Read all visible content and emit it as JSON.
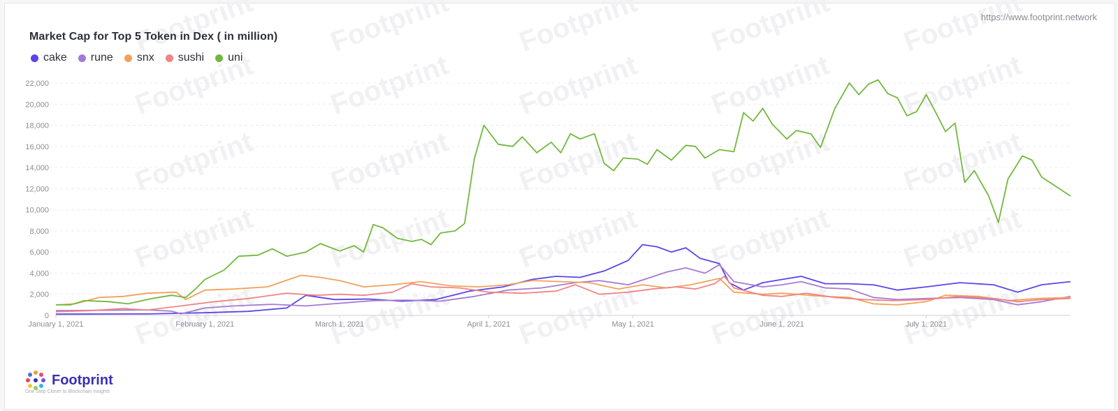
{
  "source_url": "https://www.footprint.network",
  "watermark_text": "Footprint",
  "brand": {
    "name": "Footprint",
    "tagline": "One Step Closer to Blockchain Insights"
  },
  "chart_data": {
    "type": "line",
    "title": "Market Cap for Top 5 Token in Dex ( in million)",
    "ylim": [
      0,
      22000
    ],
    "yticks": [
      "0",
      "2,000",
      "4,000",
      "6,000",
      "8,000",
      "10,000",
      "12,000",
      "14,000",
      "16,000",
      "18,000",
      "20,000",
      "22,000"
    ],
    "x_range": [
      "2021-01-01",
      "2021-07-31"
    ],
    "xtick_labels": [
      "January 1, 2021",
      "February 1, 2021",
      "March 1, 2021",
      "April 1, 2021",
      "May 1, 2021",
      "June 1, 2021",
      "July 1, 2021"
    ],
    "legend_position": "top-left",
    "series": [
      {
        "name": "cake",
        "color": "#5b45e8",
        "points": [
          [
            "2021-01-01",
            120
          ],
          [
            "2021-01-10",
            130
          ],
          [
            "2021-01-20",
            140
          ],
          [
            "2021-02-01",
            250
          ],
          [
            "2021-02-10",
            380
          ],
          [
            "2021-02-18",
            700
          ],
          [
            "2021-02-22",
            1900
          ],
          [
            "2021-02-28",
            1500
          ],
          [
            "2021-03-07",
            1550
          ],
          [
            "2021-03-14",
            1350
          ],
          [
            "2021-03-21",
            1500
          ],
          [
            "2021-03-28",
            2300
          ],
          [
            "2021-04-04",
            2700
          ],
          [
            "2021-04-10",
            3400
          ],
          [
            "2021-04-15",
            3700
          ],
          [
            "2021-04-20",
            3600
          ],
          [
            "2021-04-25",
            4200
          ],
          [
            "2021-04-30",
            5200
          ],
          [
            "2021-05-03",
            6700
          ],
          [
            "2021-05-06",
            6500
          ],
          [
            "2021-05-09",
            6000
          ],
          [
            "2021-05-12",
            6400
          ],
          [
            "2021-05-15",
            5400
          ],
          [
            "2021-05-19",
            4900
          ],
          [
            "2021-05-21",
            3100
          ],
          [
            "2021-05-24",
            2400
          ],
          [
            "2021-05-28",
            3100
          ],
          [
            "2021-06-01",
            3400
          ],
          [
            "2021-06-05",
            3700
          ],
          [
            "2021-06-10",
            3000
          ],
          [
            "2021-06-15",
            3000
          ],
          [
            "2021-06-20",
            2900
          ],
          [
            "2021-06-25",
            2400
          ],
          [
            "2021-07-01",
            2700
          ],
          [
            "2021-07-08",
            3100
          ],
          [
            "2021-07-15",
            2900
          ],
          [
            "2021-07-20",
            2200
          ],
          [
            "2021-07-25",
            2900
          ],
          [
            "2021-07-31",
            3200
          ]
        ]
      },
      {
        "name": "rune",
        "color": "#a57ad3",
        "points": [
          [
            "2021-01-01",
            450
          ],
          [
            "2021-01-10",
            480
          ],
          [
            "2021-01-20",
            520
          ],
          [
            "2021-01-25",
            400
          ],
          [
            "2021-01-27",
            150
          ],
          [
            "2021-02-01",
            700
          ],
          [
            "2021-02-07",
            900
          ],
          [
            "2021-02-15",
            1050
          ],
          [
            "2021-02-22",
            900
          ],
          [
            "2021-03-01",
            1150
          ],
          [
            "2021-03-08",
            1400
          ],
          [
            "2021-03-15",
            1450
          ],
          [
            "2021-03-22",
            1350
          ],
          [
            "2021-03-29",
            1800
          ],
          [
            "2021-04-05",
            2400
          ],
          [
            "2021-04-12",
            2600
          ],
          [
            "2021-04-19",
            3100
          ],
          [
            "2021-04-24",
            3300
          ],
          [
            "2021-04-30",
            2900
          ],
          [
            "2021-05-04",
            3500
          ],
          [
            "2021-05-08",
            4100
          ],
          [
            "2021-05-12",
            4500
          ],
          [
            "2021-05-16",
            4000
          ],
          [
            "2021-05-19",
            4800
          ],
          [
            "2021-05-22",
            3200
          ],
          [
            "2021-05-28",
            2700
          ],
          [
            "2021-06-01",
            2900
          ],
          [
            "2021-06-05",
            3200
          ],
          [
            "2021-06-10",
            2600
          ],
          [
            "2021-06-15",
            2500
          ],
          [
            "2021-06-20",
            1700
          ],
          [
            "2021-06-25",
            1500
          ],
          [
            "2021-07-01",
            1600
          ],
          [
            "2021-07-08",
            1700
          ],
          [
            "2021-07-15",
            1500
          ],
          [
            "2021-07-20",
            1000
          ],
          [
            "2021-07-25",
            1300
          ],
          [
            "2021-07-31",
            1800
          ]
        ]
      },
      {
        "name": "snx",
        "color": "#f2a15a",
        "points": [
          [
            "2021-01-01",
            1000
          ],
          [
            "2021-01-05",
            1100
          ],
          [
            "2021-01-10",
            1700
          ],
          [
            "2021-01-15",
            1800
          ],
          [
            "2021-01-20",
            2100
          ],
          [
            "2021-01-26",
            2200
          ],
          [
            "2021-01-28",
            1500
          ],
          [
            "2021-02-01",
            2400
          ],
          [
            "2021-02-07",
            2500
          ],
          [
            "2021-02-14",
            2700
          ],
          [
            "2021-02-21",
            3800
          ],
          [
            "2021-02-25",
            3600
          ],
          [
            "2021-03-01",
            3300
          ],
          [
            "2021-03-06",
            2700
          ],
          [
            "2021-03-12",
            2900
          ],
          [
            "2021-03-18",
            3200
          ],
          [
            "2021-03-24",
            2800
          ],
          [
            "2021-03-30",
            2700
          ],
          [
            "2021-04-05",
            2900
          ],
          [
            "2021-04-10",
            3300
          ],
          [
            "2021-04-16",
            3200
          ],
          [
            "2021-04-22",
            3100
          ],
          [
            "2021-04-28",
            2500
          ],
          [
            "2021-05-03",
            2900
          ],
          [
            "2021-05-08",
            2600
          ],
          [
            "2021-05-13",
            2900
          ],
          [
            "2021-05-19",
            3500
          ],
          [
            "2021-05-22",
            2200
          ],
          [
            "2021-05-28",
            2000
          ],
          [
            "2021-06-01",
            2100
          ],
          [
            "2021-06-10",
            1800
          ],
          [
            "2021-06-15",
            1700
          ],
          [
            "2021-06-20",
            1100
          ],
          [
            "2021-06-25",
            1000
          ],
          [
            "2021-07-01",
            1300
          ],
          [
            "2021-07-05",
            1900
          ],
          [
            "2021-07-12",
            1800
          ],
          [
            "2021-07-18",
            1400
          ],
          [
            "2021-07-24",
            1600
          ],
          [
            "2021-07-31",
            1700
          ]
        ]
      },
      {
        "name": "sushi",
        "color": "#ef8585",
        "points": [
          [
            "2021-01-01",
            350
          ],
          [
            "2021-01-08",
            450
          ],
          [
            "2021-01-15",
            650
          ],
          [
            "2021-01-20",
            500
          ],
          [
            "2021-01-27",
            900
          ],
          [
            "2021-02-03",
            1300
          ],
          [
            "2021-02-10",
            1600
          ],
          [
            "2021-02-18",
            2100
          ],
          [
            "2021-02-24",
            1900
          ],
          [
            "2021-03-01",
            2000
          ],
          [
            "2021-03-06",
            1900
          ],
          [
            "2021-03-12",
            2200
          ],
          [
            "2021-03-16",
            3000
          ],
          [
            "2021-03-20",
            2700
          ],
          [
            "2021-03-26",
            2600
          ],
          [
            "2021-04-01",
            2200
          ],
          [
            "2021-04-08",
            2100
          ],
          [
            "2021-04-15",
            2300
          ],
          [
            "2021-04-19",
            2900
          ],
          [
            "2021-04-24",
            2000
          ],
          [
            "2021-04-30",
            2200
          ],
          [
            "2021-05-05",
            2500
          ],
          [
            "2021-05-10",
            2700
          ],
          [
            "2021-05-14",
            2500
          ],
          [
            "2021-05-18",
            3000
          ],
          [
            "2021-05-20",
            3700
          ],
          [
            "2021-05-22",
            2600
          ],
          [
            "2021-05-28",
            1900
          ],
          [
            "2021-06-01",
            1800
          ],
          [
            "2021-06-06",
            2100
          ],
          [
            "2021-06-12",
            1700
          ],
          [
            "2021-06-18",
            1500
          ],
          [
            "2021-06-24",
            1400
          ],
          [
            "2021-07-01",
            1500
          ],
          [
            "2021-07-08",
            1800
          ],
          [
            "2021-07-15",
            1600
          ],
          [
            "2021-07-20",
            1300
          ],
          [
            "2021-07-25",
            1500
          ],
          [
            "2021-07-31",
            1600
          ]
        ]
      },
      {
        "name": "uni",
        "color": "#72b83e",
        "points": [
          [
            "2021-01-01",
            1000
          ],
          [
            "2021-01-04",
            1000
          ],
          [
            "2021-01-07",
            1400
          ],
          [
            "2021-01-12",
            1300
          ],
          [
            "2021-01-16",
            1100
          ],
          [
            "2021-01-21",
            1600
          ],
          [
            "2021-01-25",
            1900
          ],
          [
            "2021-01-28",
            1700
          ],
          [
            "2021-01-30",
            2500
          ],
          [
            "2021-02-01",
            3400
          ],
          [
            "2021-02-05",
            4300
          ],
          [
            "2021-02-08",
            5600
          ],
          [
            "2021-02-12",
            5700
          ],
          [
            "2021-02-15",
            6300
          ],
          [
            "2021-02-18",
            5600
          ],
          [
            "2021-02-22",
            6000
          ],
          [
            "2021-02-25",
            6800
          ],
          [
            "2021-03-01",
            6100
          ],
          [
            "2021-03-04",
            6600
          ],
          [
            "2021-03-06",
            6000
          ],
          [
            "2021-03-08",
            8600
          ],
          [
            "2021-03-10",
            8300
          ],
          [
            "2021-03-13",
            7300
          ],
          [
            "2021-03-16",
            7000
          ],
          [
            "2021-03-18",
            7200
          ],
          [
            "2021-03-20",
            6700
          ],
          [
            "2021-03-22",
            7800
          ],
          [
            "2021-03-25",
            8000
          ],
          [
            "2021-03-27",
            8700
          ],
          [
            "2021-03-29",
            14800
          ],
          [
            "2021-03-31",
            18000
          ],
          [
            "2021-04-03",
            16200
          ],
          [
            "2021-04-06",
            16000
          ],
          [
            "2021-04-08",
            16900
          ],
          [
            "2021-04-11",
            15400
          ],
          [
            "2021-04-14",
            16400
          ],
          [
            "2021-04-16",
            15400
          ],
          [
            "2021-04-18",
            17200
          ],
          [
            "2021-04-20",
            16700
          ],
          [
            "2021-04-23",
            17200
          ],
          [
            "2021-04-25",
            14400
          ],
          [
            "2021-04-27",
            13700
          ],
          [
            "2021-04-29",
            14900
          ],
          [
            "2021-05-02",
            14800
          ],
          [
            "2021-05-04",
            14300
          ],
          [
            "2021-05-06",
            15700
          ],
          [
            "2021-05-09",
            14700
          ],
          [
            "2021-05-12",
            16100
          ],
          [
            "2021-05-14",
            16000
          ],
          [
            "2021-05-16",
            14900
          ],
          [
            "2021-05-19",
            15700
          ],
          [
            "2021-05-22",
            15500
          ],
          [
            "2021-05-24",
            19200
          ],
          [
            "2021-05-26",
            18400
          ],
          [
            "2021-05-28",
            19600
          ],
          [
            "2021-05-30",
            18100
          ],
          [
            "2021-06-02",
            16700
          ],
          [
            "2021-06-04",
            17500
          ],
          [
            "2021-06-07",
            17200
          ],
          [
            "2021-06-09",
            15900
          ],
          [
            "2021-06-12",
            19600
          ],
          [
            "2021-06-15",
            22000
          ],
          [
            "2021-06-17",
            20900
          ],
          [
            "2021-06-19",
            21900
          ],
          [
            "2021-06-21",
            22300
          ],
          [
            "2021-06-23",
            21000
          ],
          [
            "2021-06-25",
            20600
          ],
          [
            "2021-06-27",
            18900
          ],
          [
            "2021-06-29",
            19300
          ],
          [
            "2021-07-01",
            20900
          ],
          [
            "2021-07-03",
            19200
          ],
          [
            "2021-07-05",
            17400
          ],
          [
            "2021-07-07",
            18200
          ],
          [
            "2021-07-09",
            12600
          ],
          [
            "2021-07-11",
            13700
          ],
          [
            "2021-07-14",
            11300
          ],
          [
            "2021-07-16",
            8800
          ],
          [
            "2021-07-18",
            12900
          ],
          [
            "2021-07-21",
            15100
          ],
          [
            "2021-07-23",
            14700
          ],
          [
            "2021-07-25",
            13100
          ],
          [
            "2021-07-28",
            12200
          ],
          [
            "2021-07-31",
            11300
          ]
        ]
      }
    ]
  }
}
